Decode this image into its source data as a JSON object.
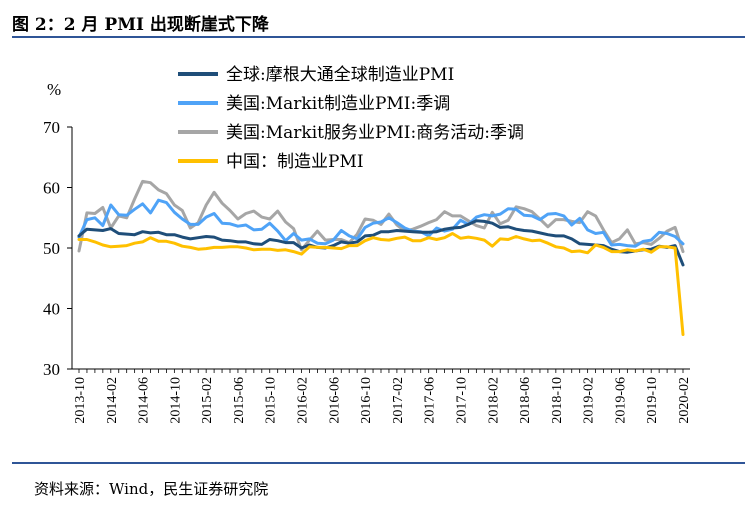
{
  "title": "图 2：2 月 PMI 出现断崖式下降",
  "source": "资料来源：Wind，民生证券研究院",
  "chart_data": {
    "type": "line",
    "ylabel": "%",
    "ylim": [
      30,
      70
    ],
    "yticks": [
      "30",
      "40",
      "50",
      "60",
      "70"
    ],
    "x": [
      "2013-10",
      "2013-11",
      "2013-12",
      "2014-01",
      "2014-02",
      "2014-03",
      "2014-04",
      "2014-05",
      "2014-06",
      "2014-07",
      "2014-08",
      "2014-09",
      "2014-10",
      "2014-11",
      "2014-12",
      "2015-01",
      "2015-02",
      "2015-03",
      "2015-04",
      "2015-05",
      "2015-06",
      "2015-07",
      "2015-08",
      "2015-09",
      "2015-10",
      "2015-11",
      "2015-12",
      "2016-01",
      "2016-02",
      "2016-03",
      "2016-04",
      "2016-05",
      "2016-06",
      "2016-07",
      "2016-08",
      "2016-09",
      "2016-10",
      "2016-11",
      "2016-12",
      "2017-01",
      "2017-02",
      "2017-03",
      "2017-04",
      "2017-05",
      "2017-06",
      "2017-07",
      "2017-08",
      "2017-09",
      "2017-10",
      "2017-11",
      "2017-12",
      "2018-01",
      "2018-02",
      "2018-03",
      "2018-04",
      "2018-05",
      "2018-06",
      "2018-07",
      "2018-08",
      "2018-09",
      "2018-10",
      "2018-11",
      "2018-12",
      "2019-01",
      "2019-02",
      "2019-03",
      "2019-04",
      "2019-05",
      "2019-06",
      "2019-07",
      "2019-08",
      "2019-09",
      "2019-10",
      "2019-11",
      "2019-12",
      "2020-01",
      "2020-02"
    ],
    "xtick_labels": [
      "2013-10",
      "2014-02",
      "2014-06",
      "2014-10",
      "2015-02",
      "2015-06",
      "2015-10",
      "2016-02",
      "2016-06",
      "2016-10",
      "2017-02",
      "2017-06",
      "2017-10",
      "2018-02",
      "2018-06",
      "2018-10",
      "2019-02",
      "2019-06",
      "2019-10",
      "2020-02"
    ],
    "legend_position": "top",
    "series": [
      {
        "name": "全球:摩根大通全球制造业PMI",
        "color": "#1f4e79",
        "values": [
          52.0,
          53.1,
          53.0,
          52.9,
          53.2,
          52.4,
          52.3,
          52.2,
          52.7,
          52.5,
          52.6,
          52.2,
          52.2,
          51.8,
          51.5,
          51.7,
          51.9,
          51.8,
          51.3,
          51.2,
          51.0,
          51.0,
          50.7,
          50.6,
          51.4,
          51.2,
          50.9,
          50.9,
          50.0,
          50.5,
          50.1,
          50.0,
          50.4,
          51.0,
          50.8,
          51.0,
          52.0,
          52.1,
          52.7,
          52.7,
          52.9,
          52.8,
          52.7,
          52.6,
          52.6,
          52.7,
          53.1,
          53.3,
          53.4,
          53.9,
          54.5,
          54.4,
          54.1,
          53.4,
          53.5,
          53.1,
          52.9,
          52.8,
          52.5,
          52.2,
          52.0,
          52.0,
          51.5,
          50.7,
          50.6,
          50.5,
          50.4,
          49.8,
          49.4,
          49.3,
          49.5,
          49.7,
          49.8,
          50.3,
          50.1,
          50.4,
          47.2
        ]
      },
      {
        "name": "美国:Markit制造业PMI:季调",
        "color": "#4fa3f7",
        "values": [
          51.8,
          54.7,
          55.0,
          53.7,
          57.1,
          55.5,
          55.4,
          56.4,
          57.3,
          55.8,
          57.9,
          57.5,
          55.9,
          54.8,
          53.9,
          53.9,
          55.1,
          55.7,
          54.1,
          54.0,
          53.6,
          53.8,
          53.0,
          53.1,
          54.1,
          52.8,
          51.2,
          52.4,
          51.3,
          51.5,
          50.8,
          50.7,
          51.3,
          52.9,
          52.0,
          51.5,
          53.4,
          54.1,
          54.3,
          55.0,
          54.2,
          53.3,
          52.8,
          52.7,
          52.0,
          53.3,
          52.8,
          53.1,
          54.6,
          53.9,
          55.1,
          55.5,
          55.3,
          55.6,
          56.5,
          56.4,
          55.4,
          55.3,
          54.7,
          55.6,
          55.7,
          55.3,
          53.8,
          54.9,
          53.0,
          52.4,
          52.6,
          50.5,
          50.6,
          50.4,
          50.3,
          51.1,
          51.3,
          52.6,
          52.4,
          51.9,
          50.7
        ]
      },
      {
        "name": "美国:Markit服务业PMI:商务活动:季调",
        "color": "#a6a6a6",
        "values": [
          49.5,
          55.8,
          55.7,
          56.7,
          53.3,
          55.3,
          55.0,
          58.1,
          61.0,
          60.8,
          59.6,
          59.0,
          57.1,
          56.2,
          53.3,
          54.2,
          57.1,
          59.2,
          57.4,
          56.2,
          54.8,
          55.7,
          56.1,
          55.1,
          54.8,
          56.1,
          54.3,
          53.2,
          49.7,
          51.3,
          52.8,
          51.3,
          51.4,
          51.4,
          50.9,
          52.3,
          54.8,
          54.6,
          53.9,
          55.6,
          53.8,
          52.8,
          53.1,
          53.6,
          54.2,
          54.7,
          56.0,
          55.3,
          55.3,
          54.5,
          53.7,
          53.3,
          55.9,
          54.0,
          54.6,
          56.8,
          56.5,
          56.0,
          54.8,
          53.5,
          54.7,
          54.7,
          54.4,
          54.2,
          56.0,
          55.3,
          53.0,
          50.9,
          51.5,
          53.0,
          50.7,
          50.9,
          50.6,
          51.6,
          52.8,
          53.4,
          49.4
        ]
      },
      {
        "name": "中国：制造业PMI",
        "color": "#ffc000",
        "values": [
          51.4,
          51.4,
          51.0,
          50.5,
          50.2,
          50.3,
          50.4,
          50.8,
          51.0,
          51.7,
          51.1,
          51.1,
          50.8,
          50.3,
          50.1,
          49.8,
          49.9,
          50.1,
          50.1,
          50.2,
          50.2,
          50.0,
          49.7,
          49.8,
          49.8,
          49.6,
          49.7,
          49.4,
          49.0,
          50.2,
          50.1,
          50.1,
          50.0,
          49.9,
          50.4,
          50.4,
          51.2,
          51.7,
          51.4,
          51.3,
          51.6,
          51.8,
          51.2,
          51.2,
          51.7,
          51.4,
          51.7,
          52.4,
          51.6,
          51.8,
          51.6,
          51.3,
          50.3,
          51.5,
          51.4,
          51.9,
          51.5,
          51.2,
          51.3,
          50.8,
          50.2,
          50.0,
          49.4,
          49.5,
          49.2,
          50.5,
          50.1,
          49.4,
          49.4,
          49.7,
          49.5,
          49.8,
          49.3,
          50.2,
          50.2,
          50.0,
          35.7
        ]
      }
    ]
  }
}
